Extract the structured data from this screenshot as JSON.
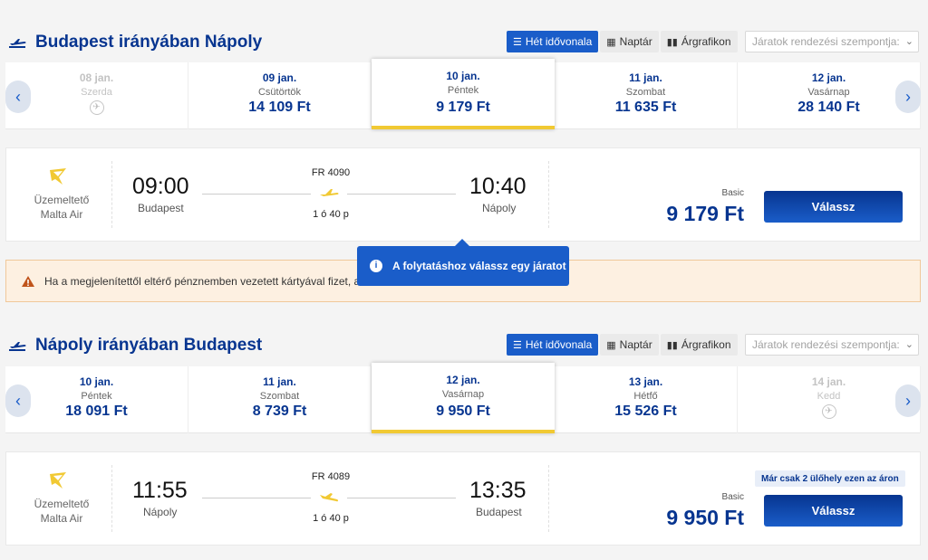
{
  "colors": {
    "brand": "#073590",
    "accent": "#1a5dc9",
    "yellow": "#f1c933"
  },
  "view_buttons": {
    "timeline": "Hét idővonala",
    "calendar": "Naptár",
    "pricegraph": "Árgrafikon",
    "sort_placeholder": "Járatok rendezési szempontja:"
  },
  "outbound": {
    "title": "Budapest irányában Nápoly",
    "days": [
      {
        "date": "08 jan.",
        "weekday": "Szerda",
        "price": "",
        "no_flight": true
      },
      {
        "date": "09 jan.",
        "weekday": "Csütörtök",
        "price": "14 109 Ft"
      },
      {
        "date": "10 jan.",
        "weekday": "Péntek",
        "price": "9 179 Ft",
        "selected": true
      },
      {
        "date": "11 jan.",
        "weekday": "Szombat",
        "price": "11 635 Ft"
      },
      {
        "date": "12 jan.",
        "weekday": "Vasárnap",
        "price": "28 140 Ft"
      }
    ],
    "flight": {
      "operator_label": "Üzemeltető",
      "operator": "Malta Air",
      "dep_time": "09:00",
      "dep_city": "Budapest",
      "flight_no": "FR 4090",
      "duration": "1 ó 40 p",
      "arr_time": "10:40",
      "arr_city": "Nápoly",
      "fare": "Basic",
      "price": "9 179 Ft",
      "button": "Válassz"
    }
  },
  "warning": {
    "text": "Ha a megjelenítettől eltérő pénznemben vezetett kártyával fizet, a",
    "icon": "warning-triangle-icon"
  },
  "tooltip": {
    "text": "A folytatáshoz válassz egy járatot",
    "icon": "info-icon"
  },
  "inbound": {
    "title": "Nápoly irányában Budapest",
    "days": [
      {
        "date": "10 jan.",
        "weekday": "Péntek",
        "price": "18 091 Ft"
      },
      {
        "date": "11 jan.",
        "weekday": "Szombat",
        "price": "8 739 Ft"
      },
      {
        "date": "12 jan.",
        "weekday": "Vasárnap",
        "price": "9 950 Ft",
        "selected": true
      },
      {
        "date": "13 jan.",
        "weekday": "Hétfő",
        "price": "15 526 Ft"
      },
      {
        "date": "14 jan.",
        "weekday": "Kedd",
        "price": "",
        "no_flight": true
      }
    ],
    "flight": {
      "operator_label": "Üzemeltető",
      "operator": "Malta Air",
      "dep_time": "11:55",
      "dep_city": "Nápoly",
      "flight_no": "FR 4089",
      "duration": "1 ó 40 p",
      "arr_time": "13:35",
      "arr_city": "Budapest",
      "fare": "Basic",
      "price": "9 950 Ft",
      "seat_badge": "Már csak 2 ülőhely ezen az áron",
      "button": "Válassz"
    }
  }
}
